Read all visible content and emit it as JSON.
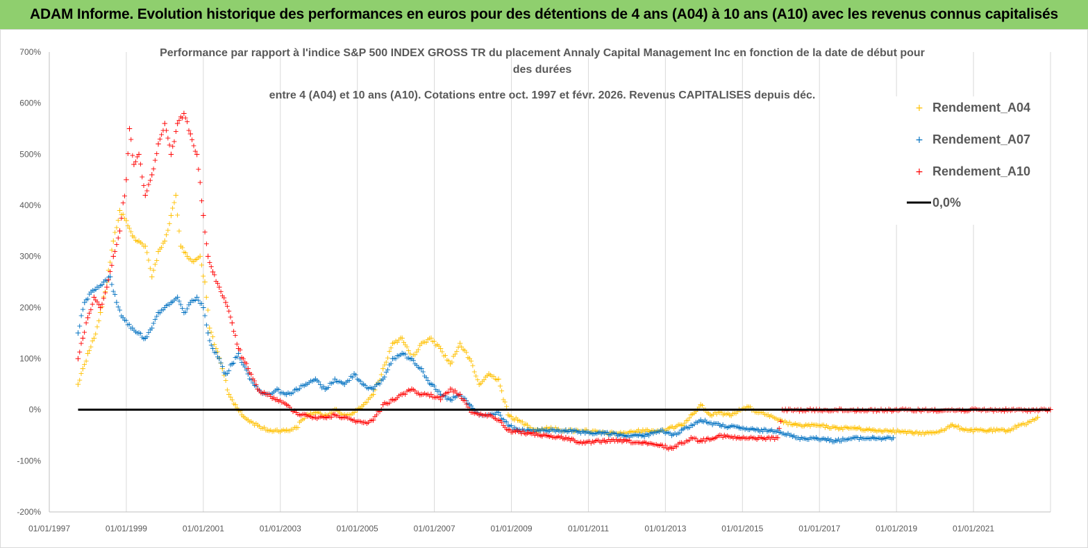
{
  "header": {
    "title": "ADAM Informe. Evolution historique des performances en euros pour des détentions de 4 ans (A04) à 10 ans (A10) avec les revenus connus capitalisés"
  },
  "colors": {
    "header_bg": "#8fcf6e",
    "A04": "#ffc000",
    "A07": "#0070c0",
    "A10": "#ff0000",
    "zero": "#000000"
  },
  "chart_data": {
    "type": "scatter",
    "title_lines": [
      "Performance par rapport à l'indice S&P 500 INDEX GROSS TR  du placement Annaly Capital Management Inc en fonction de la date de début pour",
      "des durées",
      "entre 4 (A04) et 10 ans (A10). Cotations entre oct. 1997 et févr. 2026. Revenus CAPITALISES depuis déc."
    ],
    "xlabel": "",
    "ylabel": "",
    "x_tick_labels": [
      "01/01/1997",
      "01/01/1999",
      "01/01/2001",
      "01/01/2003",
      "01/01/2005",
      "01/01/2007",
      "01/01/2009",
      "01/01/2011",
      "01/01/2013",
      "01/01/2015",
      "01/01/2017",
      "01/01/2019",
      "01/01/2021"
    ],
    "y_tick_labels": [
      "700%",
      "600%",
      "500%",
      "400%",
      "300%",
      "200%",
      "100%",
      "0%",
      "-100%",
      "-200%"
    ],
    "xlim": [
      "1997-01-01",
      "2023-01-01"
    ],
    "ylim": [
      -200,
      700
    ],
    "grid": "vertical",
    "legend_position": "right",
    "series": [
      {
        "name": "Rendement_A04",
        "color": "#ffc000",
        "marker": "+",
        "points": [
          [
            "1997-10-01",
            50
          ],
          [
            "1997-11-15",
            80
          ],
          [
            "1998-01-01",
            110
          ],
          [
            "1998-03-01",
            140
          ],
          [
            "1998-05-01",
            190
          ],
          [
            "1998-07-01",
            250
          ],
          [
            "1998-09-01",
            330
          ],
          [
            "1998-11-01",
            390
          ],
          [
            "1999-01-01",
            370
          ],
          [
            "1999-03-01",
            340
          ],
          [
            "1999-05-01",
            330
          ],
          [
            "1999-07-01",
            320
          ],
          [
            "1999-09-01",
            260
          ],
          [
            "1999-11-01",
            310
          ],
          [
            "2000-01-01",
            330
          ],
          [
            "2000-03-01",
            380
          ],
          [
            "2000-04-15",
            420
          ],
          [
            "2000-06-01",
            320
          ],
          [
            "2000-08-01",
            300
          ],
          [
            "2000-10-01",
            290
          ],
          [
            "2000-12-01",
            300
          ],
          [
            "2001-01-15",
            250
          ],
          [
            "2001-03-01",
            160
          ],
          [
            "2001-05-01",
            120
          ],
          [
            "2001-07-01",
            80
          ],
          [
            "2001-09-01",
            30
          ],
          [
            "2001-11-01",
            10
          ],
          [
            "2002-01-01",
            -10
          ],
          [
            "2002-03-01",
            -20
          ],
          [
            "2002-06-01",
            -30
          ],
          [
            "2002-09-01",
            -40
          ],
          [
            "2002-12-01",
            -40
          ],
          [
            "2003-03-01",
            -40
          ],
          [
            "2003-06-01",
            -35
          ],
          [
            "2003-09-01",
            -10
          ],
          [
            "2003-12-01",
            -5
          ],
          [
            "2004-03-01",
            -10
          ],
          [
            "2004-06-01",
            0
          ],
          [
            "2004-09-01",
            -10
          ],
          [
            "2004-12-01",
            -5
          ],
          [
            "2005-03-01",
            10
          ],
          [
            "2005-06-01",
            30
          ],
          [
            "2005-09-01",
            80
          ],
          [
            "2005-12-01",
            130
          ],
          [
            "2006-03-01",
            140
          ],
          [
            "2006-06-01",
            100
          ],
          [
            "2006-09-01",
            130
          ],
          [
            "2006-12-01",
            140
          ],
          [
            "2007-03-01",
            120
          ],
          [
            "2007-06-01",
            90
          ],
          [
            "2007-09-01",
            130
          ],
          [
            "2007-12-01",
            100
          ],
          [
            "2008-03-01",
            50
          ],
          [
            "2008-06-01",
            70
          ],
          [
            "2008-09-01",
            60
          ],
          [
            "2008-12-01",
            -10
          ],
          [
            "2009-03-01",
            -20
          ],
          [
            "2009-06-01",
            -30
          ],
          [
            "2009-09-01",
            -40
          ],
          [
            "2009-12-01",
            -35
          ],
          [
            "2010-06-01",
            -40
          ],
          [
            "2010-12-01",
            -40
          ],
          [
            "2011-06-01",
            -45
          ],
          [
            "2011-12-01",
            -45
          ],
          [
            "2012-06-01",
            -40
          ],
          [
            "2012-12-01",
            -40
          ],
          [
            "2013-06-01",
            -30
          ],
          [
            "2013-09-01",
            -10
          ],
          [
            "2013-12-01",
            10
          ],
          [
            "2014-03-01",
            -10
          ],
          [
            "2014-06-01",
            -5
          ],
          [
            "2014-09-01",
            -10
          ],
          [
            "2014-12-01",
            0
          ],
          [
            "2015-03-01",
            5
          ],
          [
            "2015-06-01",
            -5
          ],
          [
            "2015-09-01",
            -10
          ],
          [
            "2015-12-01",
            -20
          ],
          [
            "2016-06-01",
            -30
          ],
          [
            "2016-12-01",
            -30
          ],
          [
            "2017-06-01",
            -35
          ],
          [
            "2017-12-01",
            -35
          ],
          [
            "2018-06-01",
            -40
          ],
          [
            "2018-12-01",
            -40
          ],
          [
            "2019-06-01",
            -45
          ],
          [
            "2019-12-01",
            -45
          ],
          [
            "2020-03-01",
            -40
          ],
          [
            "2020-06-01",
            -30
          ],
          [
            "2020-12-01",
            -40
          ],
          [
            "2021-06-01",
            -40
          ],
          [
            "2021-12-01",
            -40
          ],
          [
            "2022-03-01",
            -30
          ],
          [
            "2022-06-01",
            -25
          ],
          [
            "2022-09-01",
            -15
          ]
        ]
      },
      {
        "name": "Rendement_A07",
        "color": "#0070c0",
        "marker": "+",
        "points": [
          [
            "1997-10-01",
            150
          ],
          [
            "1997-12-01",
            210
          ],
          [
            "1998-02-01",
            230
          ],
          [
            "1998-04-01",
            240
          ],
          [
            "1998-06-01",
            250
          ],
          [
            "1998-08-01",
            260
          ],
          [
            "1998-10-01",
            210
          ],
          [
            "1998-12-01",
            180
          ],
          [
            "1999-03-01",
            160
          ],
          [
            "1999-05-01",
            150
          ],
          [
            "1999-07-01",
            140
          ],
          [
            "1999-09-01",
            160
          ],
          [
            "1999-11-01",
            190
          ],
          [
            "2000-01-01",
            200
          ],
          [
            "2000-03-01",
            210
          ],
          [
            "2000-05-01",
            220
          ],
          [
            "2000-07-01",
            190
          ],
          [
            "2000-09-01",
            210
          ],
          [
            "2000-11-01",
            220
          ],
          [
            "2001-01-01",
            200
          ],
          [
            "2001-02-15",
            150
          ],
          [
            "2001-04-01",
            120
          ],
          [
            "2001-06-01",
            100
          ],
          [
            "2001-08-01",
            70
          ],
          [
            "2001-10-01",
            90
          ],
          [
            "2001-12-01",
            110
          ],
          [
            "2002-03-01",
            70
          ],
          [
            "2002-06-01",
            40
          ],
          [
            "2002-09-01",
            30
          ],
          [
            "2002-12-01",
            40
          ],
          [
            "2003-03-01",
            30
          ],
          [
            "2003-06-01",
            40
          ],
          [
            "2003-09-01",
            50
          ],
          [
            "2003-12-01",
            60
          ],
          [
            "2004-03-01",
            40
          ],
          [
            "2004-06-01",
            60
          ],
          [
            "2004-09-01",
            50
          ],
          [
            "2004-12-01",
            70
          ],
          [
            "2005-03-01",
            50
          ],
          [
            "2005-06-01",
            40
          ],
          [
            "2005-09-01",
            60
          ],
          [
            "2005-12-01",
            100
          ],
          [
            "2006-03-01",
            110
          ],
          [
            "2006-06-01",
            100
          ],
          [
            "2006-09-01",
            80
          ],
          [
            "2006-12-01",
            50
          ],
          [
            "2007-03-01",
            30
          ],
          [
            "2007-06-01",
            20
          ],
          [
            "2007-09-01",
            30
          ],
          [
            "2007-12-01",
            10
          ],
          [
            "2008-03-01",
            -10
          ],
          [
            "2008-06-01",
            -10
          ],
          [
            "2008-09-01",
            -5
          ],
          [
            "2008-12-01",
            -30
          ],
          [
            "2009-03-01",
            -40
          ],
          [
            "2009-06-01",
            -40
          ],
          [
            "2009-12-01",
            -40
          ],
          [
            "2010-06-01",
            -40
          ],
          [
            "2010-12-01",
            -45
          ],
          [
            "2011-06-01",
            -45
          ],
          [
            "2011-12-01",
            -50
          ],
          [
            "2012-06-01",
            -50
          ],
          [
            "2012-12-01",
            -40
          ],
          [
            "2013-03-01",
            -50
          ],
          [
            "2013-06-01",
            -40
          ],
          [
            "2013-09-01",
            -30
          ],
          [
            "2013-12-01",
            -20
          ],
          [
            "2014-06-01",
            -30
          ],
          [
            "2014-12-01",
            -35
          ],
          [
            "2015-06-01",
            -40
          ],
          [
            "2015-12-01",
            -40
          ],
          [
            "2016-06-01",
            -55
          ],
          [
            "2016-12-01",
            -55
          ],
          [
            "2017-06-01",
            -60
          ],
          [
            "2017-12-01",
            -55
          ],
          [
            "2018-06-01",
            -55
          ],
          [
            "2018-12-01",
            -55
          ]
        ]
      },
      {
        "name": "Rendement_A10",
        "color": "#ff0000",
        "marker": "+",
        "points": [
          [
            "1997-10-01",
            100
          ],
          [
            "1997-11-15",
            140
          ],
          [
            "1998-01-01",
            180
          ],
          [
            "1998-03-01",
            220
          ],
          [
            "1998-05-01",
            200
          ],
          [
            "1998-07-01",
            240
          ],
          [
            "1998-09-01",
            300
          ],
          [
            "1998-11-01",
            350
          ],
          [
            "1999-01-01",
            450
          ],
          [
            "1999-02-01",
            550
          ],
          [
            "1999-03-15",
            480
          ],
          [
            "1999-05-01",
            500
          ],
          [
            "1999-07-01",
            420
          ],
          [
            "1999-09-01",
            460
          ],
          [
            "1999-11-01",
            520
          ],
          [
            "2000-01-01",
            560
          ],
          [
            "2000-03-01",
            500
          ],
          [
            "2000-05-01",
            560
          ],
          [
            "2000-07-01",
            580
          ],
          [
            "2000-09-01",
            540
          ],
          [
            "2000-11-01",
            500
          ],
          [
            "2001-01-01",
            380
          ],
          [
            "2001-02-15",
            300
          ],
          [
            "2001-04-01",
            270
          ],
          [
            "2001-06-01",
            240
          ],
          [
            "2001-08-01",
            210
          ],
          [
            "2001-10-01",
            170
          ],
          [
            "2001-12-01",
            120
          ],
          [
            "2002-03-01",
            80
          ],
          [
            "2002-06-01",
            40
          ],
          [
            "2002-09-01",
            30
          ],
          [
            "2002-12-01",
            20
          ],
          [
            "2003-03-01",
            10
          ],
          [
            "2003-06-01",
            -5
          ],
          [
            "2003-09-01",
            -10
          ],
          [
            "2003-12-01",
            -15
          ],
          [
            "2004-03-01",
            -15
          ],
          [
            "2004-06-01",
            -10
          ],
          [
            "2004-09-01",
            -15
          ],
          [
            "2004-12-01",
            -20
          ],
          [
            "2005-03-01",
            -25
          ],
          [
            "2005-06-01",
            -20
          ],
          [
            "2005-09-01",
            10
          ],
          [
            "2005-12-01",
            20
          ],
          [
            "2006-03-01",
            30
          ],
          [
            "2006-06-01",
            40
          ],
          [
            "2006-09-01",
            30
          ],
          [
            "2006-12-01",
            30
          ],
          [
            "2007-03-01",
            20
          ],
          [
            "2007-06-01",
            40
          ],
          [
            "2007-09-01",
            30
          ],
          [
            "2007-12-01",
            0
          ],
          [
            "2008-03-01",
            -10
          ],
          [
            "2008-06-01",
            -10
          ],
          [
            "2008-09-01",
            -20
          ],
          [
            "2008-12-01",
            -40
          ],
          [
            "2009-06-01",
            -45
          ],
          [
            "2009-12-01",
            -50
          ],
          [
            "2010-06-01",
            -55
          ],
          [
            "2010-12-01",
            -65
          ],
          [
            "2011-06-01",
            -60
          ],
          [
            "2011-12-01",
            -60
          ],
          [
            "2012-06-01",
            -65
          ],
          [
            "2012-12-01",
            -70
          ],
          [
            "2013-03-01",
            -75
          ],
          [
            "2013-06-01",
            -65
          ],
          [
            "2013-09-01",
            -55
          ],
          [
            "2013-12-01",
            -60
          ],
          [
            "2014-06-01",
            -50
          ],
          [
            "2014-12-01",
            -55
          ],
          [
            "2015-06-01",
            -55
          ],
          [
            "2015-12-01",
            -55
          ],
          [
            "2016-01-15",
            0
          ],
          [
            "2017-01-01",
            0
          ],
          [
            "2018-01-01",
            0
          ],
          [
            "2019-01-01",
            0
          ],
          [
            "2020-01-01",
            0
          ],
          [
            "2021-01-01",
            0
          ],
          [
            "2022-01-01",
            0
          ],
          [
            "2022-12-31",
            0
          ]
        ]
      },
      {
        "name": "0,0%",
        "color": "#000000",
        "line": true,
        "points": [
          [
            "1997-10-01",
            0
          ],
          [
            "2022-12-31",
            0
          ]
        ]
      }
    ]
  }
}
